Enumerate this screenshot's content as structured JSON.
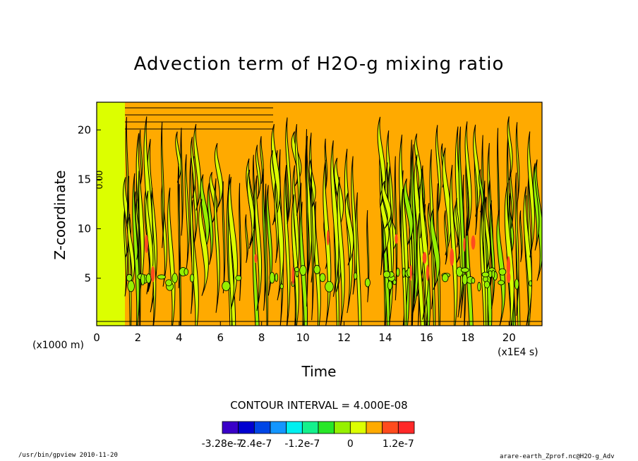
{
  "chart_data": {
    "type": "heatmap",
    "title": "Advection term of H2O-g mixing ratio",
    "xlabel": "Time",
    "ylabel": "Z-coordinate",
    "x_unit": "(x1E4 s)",
    "y_unit": "(x1000 m)",
    "xlim": [
      0,
      21.6
    ],
    "ylim": [
      0.2,
      22.8
    ],
    "x_ticks": [
      "0",
      "2",
      "4",
      "6",
      "8",
      "10",
      "12",
      "14",
      "16",
      "18",
      "20"
    ],
    "y_ticks": [
      "5",
      "10",
      "15",
      "20"
    ],
    "contour_interval_text": "CONTOUR INTERVAL = 4.000E-08",
    "contour_label": "0.00",
    "colorbar": {
      "colors": [
        "#3a00c8",
        "#0000d0",
        "#0046e6",
        "#1496ff",
        "#00f0f0",
        "#14f08c",
        "#28e628",
        "#96f000",
        "#dcff00",
        "#ffaa00",
        "#ff4b1e",
        "#ff2828"
      ],
      "tick_labels": [
        "-3.28e-7",
        "-2.4e-7",
        "-1.2e-7",
        "0",
        "1.2e-7"
      ]
    },
    "dominant_fields": {
      "positive": "#ffaa00",
      "near_zero": "#dcff00",
      "weak_negative": "#96f000",
      "strong_positive": "#ff4b1e"
    }
  },
  "footer": {
    "left": "/usr/bin/gpview  2010-11-20",
    "right": "arare-earth_Zprof.nc@H2O-g_Adv"
  }
}
